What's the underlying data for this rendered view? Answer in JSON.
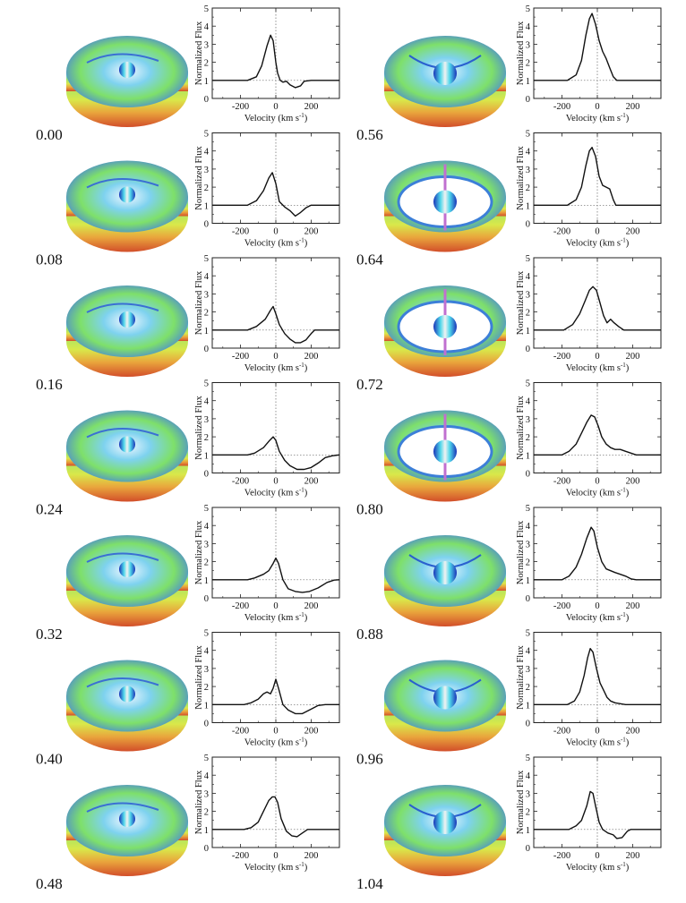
{
  "chart_data": {
    "type": "line",
    "panel_layout": "7 rows x 2 columns; each row: disk model image, phase label, line-profile plot",
    "xlabel": "Velocity (km s",
    "xlabel_sup": "-1",
    "xlabel_close": ")",
    "ylabel": "Normalized Flux",
    "xlim": [
      -360,
      360
    ],
    "ylim": [
      0,
      5
    ],
    "xticks": [
      -200,
      0,
      200
    ],
    "yticks": [
      0,
      1,
      2,
      3,
      4,
      5
    ],
    "grid": false,
    "reference_lines": {
      "x": 0,
      "y": 1,
      "style": "dotted"
    },
    "panels": [
      {
        "phase": "0.00",
        "column": 0,
        "row": 0,
        "disk": "edge",
        "x": [
          -360,
          -160,
          -110,
          -80,
          -50,
          -30,
          -15,
          0,
          10,
          25,
          40,
          60,
          80,
          110,
          140,
          160,
          200,
          360
        ],
        "y": [
          1.0,
          1.0,
          1.2,
          1.8,
          2.9,
          3.5,
          3.2,
          2.0,
          1.4,
          1.0,
          0.9,
          0.95,
          0.75,
          0.6,
          0.7,
          0.95,
          1.0,
          1.0
        ]
      },
      {
        "phase": "0.08",
        "column": 0,
        "row": 1,
        "disk": "edge",
        "x": [
          -360,
          -160,
          -110,
          -70,
          -40,
          -20,
          0,
          20,
          50,
          80,
          110,
          140,
          170,
          200,
          360
        ],
        "y": [
          1.0,
          1.0,
          1.25,
          1.8,
          2.5,
          2.8,
          2.2,
          1.2,
          0.9,
          0.7,
          0.4,
          0.6,
          0.85,
          1.0,
          1.0
        ]
      },
      {
        "phase": "0.16",
        "column": 0,
        "row": 2,
        "disk": "edge",
        "x": [
          -360,
          -160,
          -110,
          -60,
          -30,
          -15,
          0,
          20,
          50,
          80,
          110,
          140,
          170,
          200,
          220,
          360
        ],
        "y": [
          1.0,
          1.0,
          1.2,
          1.6,
          2.1,
          2.3,
          1.9,
          1.3,
          0.8,
          0.5,
          0.3,
          0.3,
          0.45,
          0.8,
          1.0,
          1.0
        ]
      },
      {
        "phase": "0.24",
        "column": 0,
        "row": 3,
        "disk": "edge",
        "x": [
          -360,
          -160,
          -120,
          -70,
          -35,
          -15,
          0,
          20,
          50,
          80,
          120,
          160,
          200,
          240,
          280,
          320,
          360
        ],
        "y": [
          1.0,
          1.0,
          1.1,
          1.4,
          1.8,
          2.0,
          1.8,
          1.2,
          0.7,
          0.4,
          0.2,
          0.2,
          0.3,
          0.55,
          0.85,
          0.95,
          1.0
        ]
      },
      {
        "phase": "0.32",
        "column": 0,
        "row": 4,
        "disk": "edge",
        "x": [
          -360,
          -160,
          -120,
          -70,
          -40,
          -15,
          0,
          15,
          40,
          70,
          110,
          150,
          190,
          240,
          290,
          330,
          360
        ],
        "y": [
          1.0,
          1.0,
          1.1,
          1.3,
          1.5,
          1.9,
          2.2,
          1.9,
          1.0,
          0.5,
          0.35,
          0.3,
          0.35,
          0.55,
          0.85,
          0.98,
          1.0
        ]
      },
      {
        "phase": "0.40",
        "column": 0,
        "row": 5,
        "disk": "edge",
        "x": [
          -360,
          -180,
          -140,
          -100,
          -70,
          -50,
          -30,
          -15,
          0,
          15,
          40,
          70,
          110,
          150,
          200,
          240,
          280,
          360
        ],
        "y": [
          1.0,
          1.0,
          1.1,
          1.3,
          1.6,
          1.7,
          1.6,
          1.9,
          2.4,
          1.9,
          1.0,
          0.7,
          0.5,
          0.5,
          0.75,
          0.95,
          1.0,
          1.0
        ]
      },
      {
        "phase": "0.48",
        "column": 0,
        "row": 6,
        "disk": "edge",
        "x": [
          -360,
          -180,
          -140,
          -100,
          -70,
          -40,
          -20,
          -5,
          10,
          30,
          60,
          90,
          120,
          150,
          180,
          210,
          360
        ],
        "y": [
          1.0,
          1.0,
          1.1,
          1.4,
          2.0,
          2.6,
          2.8,
          2.8,
          2.5,
          1.6,
          0.9,
          0.65,
          0.6,
          0.8,
          1.0,
          1.0,
          1.0
        ]
      },
      {
        "phase": "0.56",
        "column": 1,
        "row": 0,
        "disk": "star",
        "x": [
          -360,
          -170,
          -120,
          -90,
          -65,
          -45,
          -30,
          -10,
          10,
          30,
          50,
          70,
          90,
          110,
          360
        ],
        "y": [
          1.0,
          1.0,
          1.3,
          2.1,
          3.5,
          4.4,
          4.7,
          4.1,
          3.2,
          2.6,
          2.2,
          1.7,
          1.2,
          1.0,
          1.0
        ]
      },
      {
        "phase": "0.64",
        "column": 1,
        "row": 1,
        "disk": "ring",
        "x": [
          -360,
          -170,
          -120,
          -90,
          -65,
          -45,
          -30,
          -10,
          10,
          30,
          50,
          70,
          90,
          105,
          360
        ],
        "y": [
          1.0,
          1.0,
          1.3,
          2.0,
          3.2,
          4.0,
          4.2,
          3.7,
          2.6,
          2.1,
          2.0,
          1.9,
          1.3,
          1.0,
          1.0
        ]
      },
      {
        "phase": "0.72",
        "column": 1,
        "row": 2,
        "disk": "ring",
        "x": [
          -360,
          -190,
          -140,
          -100,
          -70,
          -45,
          -25,
          -5,
          15,
          35,
          55,
          75,
          95,
          120,
          150,
          360
        ],
        "y": [
          1.0,
          1.0,
          1.3,
          1.9,
          2.6,
          3.2,
          3.4,
          3.2,
          2.5,
          1.8,
          1.4,
          1.6,
          1.4,
          1.2,
          1.0,
          1.0
        ]
      },
      {
        "phase": "0.80",
        "column": 1,
        "row": 3,
        "disk": "ring",
        "x": [
          -360,
          -200,
          -160,
          -120,
          -90,
          -60,
          -35,
          -15,
          5,
          25,
          50,
          75,
          100,
          130,
          160,
          190,
          220,
          360
        ],
        "y": [
          1.0,
          1.0,
          1.2,
          1.6,
          2.2,
          2.8,
          3.2,
          3.1,
          2.6,
          2.0,
          1.6,
          1.4,
          1.3,
          1.3,
          1.2,
          1.1,
          1.0,
          1.0
        ]
      },
      {
        "phase": "0.88",
        "column": 1,
        "row": 4,
        "disk": "star",
        "x": [
          -360,
          -200,
          -160,
          -120,
          -90,
          -60,
          -35,
          -20,
          0,
          25,
          50,
          75,
          100,
          130,
          160,
          190,
          220,
          360
        ],
        "y": [
          1.0,
          1.0,
          1.2,
          1.7,
          2.4,
          3.3,
          3.9,
          3.7,
          2.8,
          2.0,
          1.6,
          1.5,
          1.4,
          1.3,
          1.2,
          1.05,
          1.0,
          1.0
        ]
      },
      {
        "phase": "0.96",
        "column": 1,
        "row": 5,
        "disk": "star",
        "x": [
          -360,
          -170,
          -130,
          -100,
          -75,
          -55,
          -40,
          -25,
          -5,
          15,
          35,
          55,
          75,
          100,
          130,
          160,
          360
        ],
        "y": [
          1.0,
          1.0,
          1.2,
          1.7,
          2.6,
          3.6,
          4.1,
          3.9,
          3.0,
          2.2,
          1.8,
          1.4,
          1.2,
          1.1,
          1.05,
          1.0,
          1.0
        ]
      },
      {
        "phase": "1.04",
        "column": 1,
        "row": 6,
        "disk": "star",
        "x": [
          -360,
          -160,
          -120,
          -90,
          -60,
          -40,
          -25,
          -10,
          10,
          30,
          60,
          90,
          110,
          140,
          170,
          190,
          360
        ],
        "y": [
          1.0,
          1.0,
          1.2,
          1.5,
          2.3,
          3.1,
          3.0,
          2.3,
          1.4,
          1.0,
          0.8,
          0.7,
          0.5,
          0.55,
          0.9,
          1.0,
          1.0
        ]
      }
    ]
  }
}
